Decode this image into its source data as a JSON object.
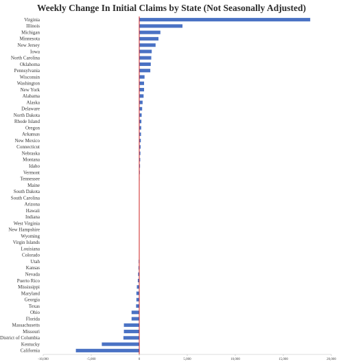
{
  "chart_data": {
    "type": "bar",
    "orientation": "horizontal",
    "title": "Weekly Change In Initial Claims by State (Not Seasonally Adjusted)",
    "xlabel": "",
    "ylabel": "",
    "xlim": [
      -10000,
      20000
    ],
    "x_ticks": [
      -10000,
      -5000,
      0,
      5000,
      10000,
      15000,
      20000
    ],
    "x_tick_labels": [
      "-10,000",
      "-5,000",
      "0",
      "5,000",
      "10,000",
      "15,000",
      "20,000"
    ],
    "grid": false,
    "legend": "none",
    "categories": [
      "Virginia",
      "Illinois",
      "Michigan",
      "Minnesota",
      "New Jersey",
      "Iowa",
      "North Carolina",
      "Oklahoma",
      "Pennsylvania",
      "Wisconsin",
      "Washington",
      "New York",
      "Alabama",
      "Alaska",
      "Delaware",
      "North Dakota",
      "Rhode Island",
      "Oregon",
      "Arkansas",
      "New Mexico",
      "Connecticut",
      "Nebraska",
      "Montana",
      "Idaho",
      "Vermont",
      "Tennessee",
      "Maine",
      "South Dakota",
      "South Carolina",
      "Arizona",
      "Hawaii",
      "Indiana",
      "West Virginia",
      "New Hampshire",
      "Wyoming",
      "Virgin Islands",
      "Louisiana",
      "Colorado",
      "Utah",
      "Kansas",
      "Nevada",
      "Puerto Rico",
      "Mississippi",
      "Maryland",
      "Georgia",
      "Texas",
      "Ohio",
      "Florida",
      "Massachusetts",
      "Missouri",
      "District of Columbia",
      "Kentucky",
      "California"
    ],
    "values": [
      17800,
      4500,
      2200,
      2000,
      1700,
      1300,
      1250,
      1200,
      1150,
      550,
      500,
      500,
      450,
      350,
      300,
      250,
      220,
      200,
      180,
      160,
      140,
      120,
      100,
      80,
      60,
      40,
      20,
      5,
      0,
      0,
      0,
      0,
      0,
      0,
      0,
      0,
      -10,
      -30,
      -60,
      -80,
      -120,
      -150,
      -250,
      -300,
      -300,
      -330,
      -800,
      -800,
      -1600,
      -1600,
      -1650,
      -3900,
      -6600
    ],
    "colors": {
      "bar": "#4a72c4",
      "zero_line": "#cc1f1f",
      "axis": "#bbbbbb",
      "title": "#2b2b2b"
    }
  }
}
